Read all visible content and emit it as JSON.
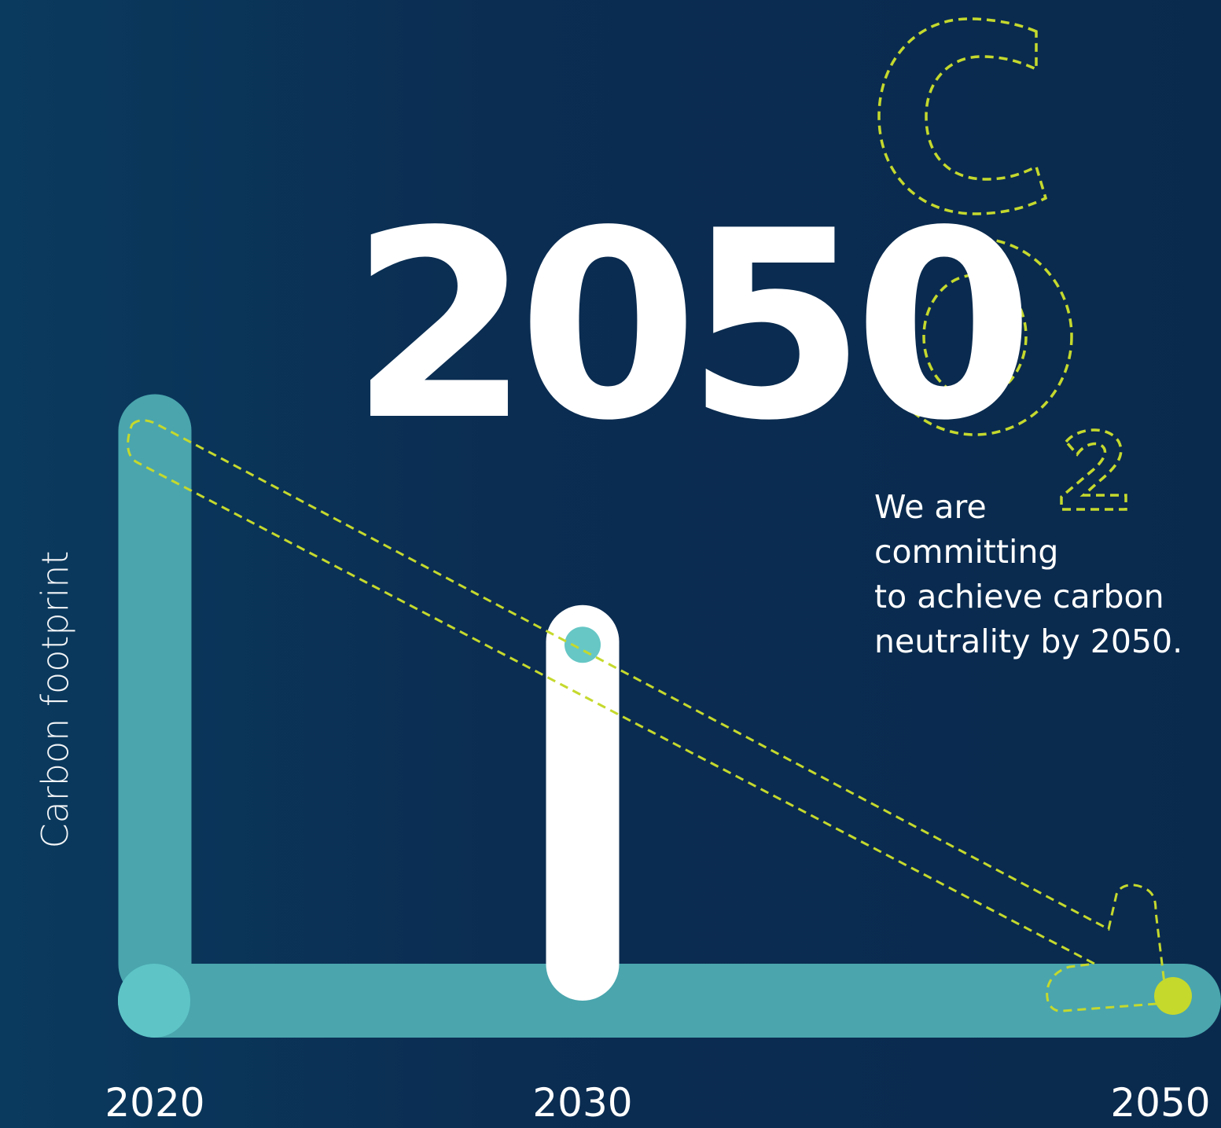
{
  "headline": "2050",
  "tagline": "We are\ncommitting\nto achieve carbon\nneutrality by 2050.",
  "co2_mark": {
    "letters": [
      "C",
      "O",
      "2"
    ]
  },
  "colors": {
    "background": "#0b2d52",
    "teal": "#4aa5ad",
    "teal_light": "#5ec4c6",
    "white": "#ffffff",
    "accent_lime": "#c5d92d",
    "dot_teal": "#66c7c5"
  },
  "chart_data": {
    "type": "bar",
    "categories": [
      "2020",
      "2030",
      "2050"
    ],
    "values": [
      1.0,
      0.63,
      0.0
    ],
    "ylabel": "Carbon footprint",
    "xlabel": "",
    "grid": false,
    "legend": "none",
    "trend": "decreasing to zero by 2050"
  }
}
